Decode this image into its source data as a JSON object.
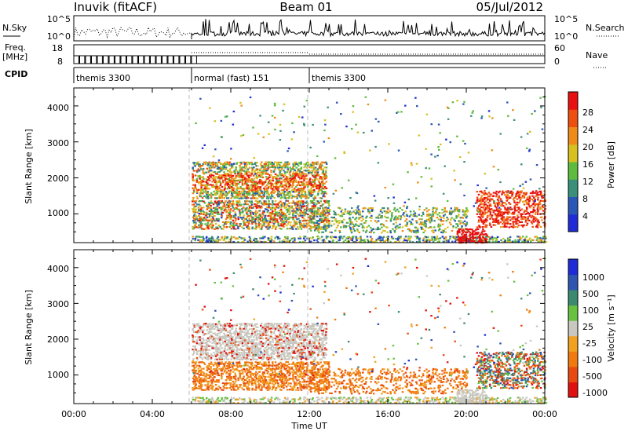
{
  "header": {
    "station": "Inuvik (fitACF)",
    "beam": "Beam 01",
    "date": "05/Jul/2012"
  },
  "summary_panels": {
    "nsky_label": "N.Sky",
    "nsky_ticks": [
      "10^5",
      "10^0"
    ],
    "nsearch_label": "N.Search",
    "nsearch_ticks": [
      "10^5",
      "10^0"
    ],
    "freq_label_line1": "Freq.",
    "freq_label_line2": "[MHz]",
    "freq_ticks": [
      "18",
      "8"
    ],
    "nave_label": "Nave",
    "nave_ticks": [
      "60",
      "0"
    ],
    "cpid_label": "CPID",
    "cpid_segments": [
      {
        "label": "themis 3300",
        "start_hour": 0,
        "end_hour": 6
      },
      {
        "label": "normal (fast) 151",
        "start_hour": 6,
        "end_hour": 12
      },
      {
        "label": "themis 3300",
        "start_hour": 12,
        "end_hour": 24
      }
    ]
  },
  "colors": {
    "power_scale": [
      "#1f2bd6",
      "#2a56b8",
      "#3a8f7a",
      "#5dbb3d",
      "#d8c020",
      "#f08a18",
      "#ef4f0e",
      "#e81010"
    ],
    "velocity_scale": [
      "#1f2bd6",
      "#2e55b0",
      "#3b8a6f",
      "#68c240",
      "#c8c8c0",
      "#f2a020",
      "#f07a10",
      "#e84a10",
      "#e01010"
    ],
    "dashed_line": "#bbbbbb"
  },
  "chart_data": [
    {
      "type": "heatmap",
      "title": "",
      "xlabel": "",
      "ylabel": "Slant Range [km]",
      "x_unit": "hour UT",
      "xlim": [
        0,
        24
      ],
      "ylim": [
        200,
        4500
      ],
      "yticks": [
        "1000",
        "2000",
        "3000",
        "4000"
      ],
      "colorbar_label": "Power [dB]",
      "colorbar_ticks": [
        "4",
        "8",
        "12",
        "16",
        "20",
        "24",
        "28"
      ],
      "colorbar_range": [
        0,
        32
      ]
    },
    {
      "type": "heatmap",
      "title": "",
      "xlabel": "Time UT",
      "ylabel": "Slant Range [km]",
      "x_unit": "hour UT",
      "xlim": [
        0,
        24
      ],
      "ylim": [
        200,
        4500
      ],
      "xticks": [
        "00:00",
        "04:00",
        "08:00",
        "12:00",
        "16:00",
        "20:00",
        "00:00"
      ],
      "yticks": [
        "1000",
        "2000",
        "3000",
        "4000"
      ],
      "colorbar_label": "Velocity [m s⁻¹]",
      "colorbar_ticks": [
        "1000",
        "500",
        "100",
        "25",
        "-25",
        "-100",
        "-500",
        "-1000"
      ]
    }
  ]
}
